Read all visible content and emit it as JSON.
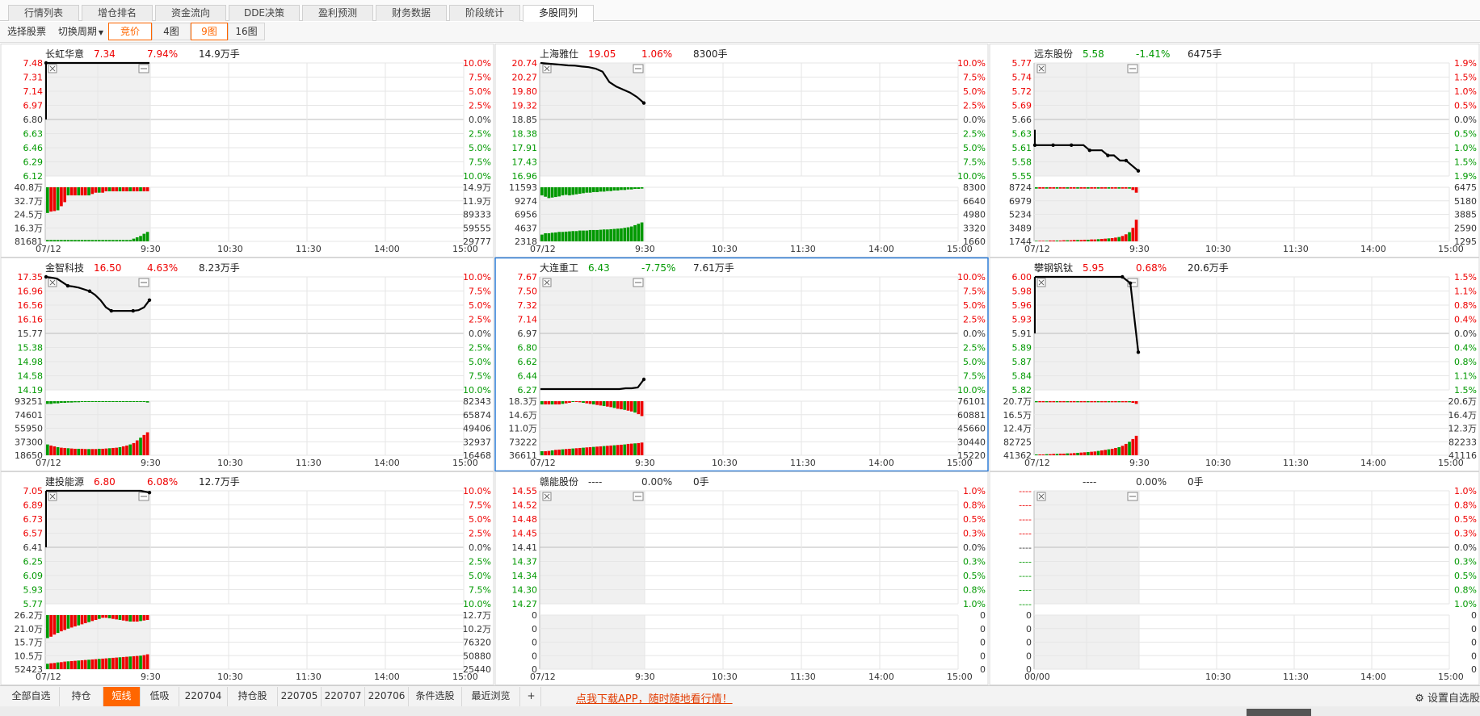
{
  "top_tabs": [
    "行情列表",
    "增仓排名",
    "资金流向",
    "DDE决策",
    "盈利预测",
    "财务数据",
    "阶段统计",
    "多股同列"
  ],
  "toolbar": {
    "select_stock": "选择股票",
    "switch_period": "切换周期",
    "auction": "竞价",
    "view_4": "4图",
    "view_9": "9图",
    "view_16": "16图"
  },
  "bottom_tabs": [
    "全部自选",
    "持仓",
    "短线",
    "低吸",
    "220704",
    "持仓股",
    "220705",
    "220707",
    "220706",
    "条件选股",
    "最近浏览"
  ],
  "bottom_active": "短线",
  "add_symbol": "+",
  "promo": "点我下载APP，随时随地看行情！",
  "settings_label": "设置自选股",
  "colors": {
    "up": "#ee0000",
    "down": "#009900",
    "flat": "#333333",
    "accent": "#ff6600",
    "selected_border": "#2b7bd6"
  },
  "panels": [
    {
      "name": "长虹华意",
      "price": "7.34",
      "chg": "7.94%",
      "vol": "14.9万手",
      "trend": "up",
      "left_ticks": [
        "7.48",
        "7.31",
        "7.14",
        "6.97",
        "6.80",
        "6.63",
        "6.46",
        "6.29",
        "6.12"
      ],
      "right_ticks": [
        "10.0%",
        "7.5%",
        "5.0%",
        "2.5%",
        "0.0%",
        "2.5%",
        "5.0%",
        "7.5%",
        "10.0%"
      ],
      "vol_left": [
        "40.8万",
        "32.7万",
        "24.5万",
        "16.3万",
        "81681"
      ],
      "vol_right": [
        "14.9万",
        "11.9万",
        "89333",
        "59555",
        "29777"
      ],
      "times": [
        "07/12",
        "9:30",
        "10:30",
        "11:30",
        "14:00",
        "15:00"
      ],
      "price_series": [
        7.48,
        7.48,
        7.48,
        7.48,
        7.48,
        7.48,
        7.48,
        7.48,
        7.48,
        7.48,
        7.48
      ],
      "dots": [
        0
      ],
      "opening_bar": [
        6.8,
        7.48
      ],
      "vol_top": [
        0.95,
        0.9,
        0.88,
        0.85,
        0.7,
        0.55,
        0.3,
        0.3,
        0.3,
        0.3,
        0.3,
        0.3,
        0.3,
        0.25,
        0.2,
        0.2,
        0.2,
        0.15,
        0.15,
        0.15,
        0.15,
        0.15,
        0.15,
        0.15,
        0.15,
        0.15,
        0.15,
        0.15,
        0.15,
        0.15
      ],
      "vol_bottom": [
        0.05,
        0.05,
        0.05,
        0.05,
        0.05,
        0.05,
        0.05,
        0.05,
        0.05,
        0.05,
        0.05,
        0.05,
        0.05,
        0.05,
        0.05,
        0.05,
        0.05,
        0.05,
        0.05,
        0.05,
        0.05,
        0.05,
        0.05,
        0.05,
        0.05,
        0.1,
        0.15,
        0.2,
        0.28,
        0.35
      ],
      "top_color": "mixed",
      "bottom_color": "green",
      "selected": false
    },
    {
      "name": "上海雅仕",
      "price": "19.05",
      "chg": "1.06%",
      "vol": "8300手",
      "trend": "up",
      "left_ticks": [
        "20.74",
        "20.27",
        "19.80",
        "19.32",
        "18.85",
        "18.38",
        "17.91",
        "17.43",
        "16.96"
      ],
      "right_ticks": [
        "10.0%",
        "7.5%",
        "5.0%",
        "2.5%",
        "0.0%",
        "2.5%",
        "5.0%",
        "7.5%",
        "10.0%"
      ],
      "vol_left": [
        "11593",
        "9274",
        "6956",
        "4637",
        "2318"
      ],
      "vol_right": [
        "8300",
        "6640",
        "4980",
        "3320",
        "1660"
      ],
      "times": [
        "07/12",
        "9:30",
        "10:30",
        "11:30",
        "14:00",
        "15:00"
      ],
      "price_series": [
        20.74,
        20.72,
        20.7,
        20.68,
        20.66,
        20.65,
        20.62,
        20.6,
        20.55,
        20.45,
        20.1,
        19.95,
        19.85,
        19.75,
        19.6,
        19.4
      ],
      "dots": [
        15
      ],
      "opening_bar": null,
      "vol_top": [
        0.3,
        0.35,
        0.4,
        0.38,
        0.36,
        0.34,
        0.3,
        0.28,
        0.3,
        0.28,
        0.26,
        0.24,
        0.22,
        0.2,
        0.2,
        0.18,
        0.18,
        0.16,
        0.16,
        0.14,
        0.14,
        0.12,
        0.12,
        0.1,
        0.1,
        0.08,
        0.08,
        0.06,
        0.06,
        0.05
      ],
      "vol_bottom": [
        0.25,
        0.3,
        0.3,
        0.32,
        0.33,
        0.35,
        0.35,
        0.36,
        0.37,
        0.38,
        0.38,
        0.4,
        0.4,
        0.4,
        0.42,
        0.42,
        0.42,
        0.43,
        0.44,
        0.44,
        0.45,
        0.46,
        0.47,
        0.48,
        0.5,
        0.52,
        0.55,
        0.6,
        0.65,
        0.7
      ],
      "top_color": "green",
      "bottom_color": "green",
      "selected": false
    },
    {
      "name": "远东股份",
      "price": "5.58",
      "chg": "-1.41%",
      "vol": "6475手",
      "trend": "down",
      "left_ticks": [
        "5.77",
        "5.74",
        "5.72",
        "5.69",
        "5.66",
        "5.63",
        "5.61",
        "5.58",
        "5.55"
      ],
      "right_ticks": [
        "1.9%",
        "1.5%",
        "1.0%",
        "0.5%",
        "0.0%",
        "0.5%",
        "1.0%",
        "1.5%",
        "1.9%"
      ],
      "vol_left": [
        "8724",
        "6979",
        "5234",
        "3489",
        "1744"
      ],
      "vol_right": [
        "6475",
        "5180",
        "3885",
        "2590",
        "1295"
      ],
      "times": [
        "07/12",
        "9:30",
        "10:30",
        "11:30",
        "14:00",
        "15:00"
      ],
      "price_series": [
        5.61,
        5.61,
        5.61,
        5.61,
        5.61,
        5.61,
        5.61,
        5.61,
        5.61,
        5.6,
        5.6,
        5.6,
        5.59,
        5.59,
        5.58,
        5.58,
        5.57,
        5.56
      ],
      "dots": [
        0,
        3,
        6,
        9,
        12,
        15,
        17
      ],
      "opening_bar": [
        5.61,
        5.64
      ],
      "vol_top": [
        0.05,
        0.05,
        0.05,
        0.05,
        0.05,
        0.05,
        0.05,
        0.05,
        0.05,
        0.05,
        0.05,
        0.05,
        0.05,
        0.05,
        0.05,
        0.05,
        0.05,
        0.05,
        0.05,
        0.05,
        0.05,
        0.05,
        0.05,
        0.05,
        0.05,
        0.05,
        0.05,
        0.05,
        0.1,
        0.2
      ],
      "vol_bottom": [
        0.02,
        0.02,
        0.02,
        0.02,
        0.03,
        0.03,
        0.03,
        0.03,
        0.04,
        0.04,
        0.04,
        0.05,
        0.05,
        0.05,
        0.06,
        0.06,
        0.07,
        0.07,
        0.08,
        0.09,
        0.1,
        0.11,
        0.12,
        0.14,
        0.16,
        0.2,
        0.26,
        0.34,
        0.5,
        0.8
      ],
      "top_color": "mixed",
      "bottom_color": "mixed",
      "selected": false
    },
    {
      "name": "金智科技",
      "price": "16.50",
      "chg": "4.63%",
      "vol": "8.23万手",
      "trend": "up",
      "left_ticks": [
        "17.35",
        "16.96",
        "16.56",
        "16.16",
        "15.77",
        "15.38",
        "14.98",
        "14.58",
        "14.19"
      ],
      "right_ticks": [
        "10.0%",
        "7.5%",
        "5.0%",
        "2.5%",
        "0.0%",
        "2.5%",
        "5.0%",
        "7.5%",
        "10.0%"
      ],
      "vol_left": [
        "93251",
        "74601",
        "55950",
        "37300",
        "18650"
      ],
      "vol_right": [
        "82343",
        "65874",
        "49406",
        "32937",
        "16468"
      ],
      "times": [
        "07/12",
        "9:30",
        "10:30",
        "11:30",
        "14:00",
        "15:00"
      ],
      "price_series": [
        17.35,
        17.33,
        17.3,
        17.2,
        17.1,
        17.08,
        17.05,
        17.0,
        16.95,
        16.85,
        16.7,
        16.5,
        16.4,
        16.4,
        16.4,
        16.4,
        16.4,
        16.42,
        16.5,
        16.7
      ],
      "dots": [
        0,
        4,
        8,
        12,
        16,
        19
      ],
      "opening_bar": null,
      "vol_top": [
        0.1,
        0.1,
        0.08,
        0.08,
        0.06,
        0.06,
        0.05,
        0.05,
        0.04,
        0.04,
        0.03,
        0.03,
        0.03,
        0.03,
        0.03,
        0.03,
        0.03,
        0.03,
        0.03,
        0.03,
        0.03,
        0.03,
        0.03,
        0.03,
        0.03,
        0.03,
        0.03,
        0.03,
        0.03,
        0.05
      ],
      "vol_bottom": [
        0.4,
        0.36,
        0.33,
        0.3,
        0.28,
        0.27,
        0.26,
        0.25,
        0.24,
        0.24,
        0.24,
        0.23,
        0.23,
        0.23,
        0.23,
        0.24,
        0.24,
        0.25,
        0.26,
        0.27,
        0.28,
        0.3,
        0.33,
        0.36,
        0.4,
        0.45,
        0.55,
        0.65,
        0.75,
        0.85
      ],
      "top_color": "green",
      "bottom_color": "mixed",
      "selected": false
    },
    {
      "name": "大连重工",
      "price": "6.43",
      "chg": "-7.75%",
      "vol": "7.61万手",
      "trend": "down",
      "left_ticks": [
        "7.67",
        "7.50",
        "7.32",
        "7.14",
        "6.97",
        "6.80",
        "6.62",
        "6.44",
        "6.27"
      ],
      "right_ticks": [
        "10.0%",
        "7.5%",
        "5.0%",
        "2.5%",
        "0.0%",
        "2.5%",
        "5.0%",
        "7.5%",
        "10.0%"
      ],
      "vol_left": [
        "18.3万",
        "14.6万",
        "11.0万",
        "73222",
        "36611"
      ],
      "vol_right": [
        "76101",
        "60881",
        "45660",
        "30440",
        "15220"
      ],
      "times": [
        "07/12",
        "9:30",
        "10:30",
        "11:30",
        "14:00",
        "15:00"
      ],
      "price_series": [
        6.28,
        6.28,
        6.28,
        6.28,
        6.28,
        6.28,
        6.28,
        6.28,
        6.28,
        6.28,
        6.28,
        6.28,
        6.28,
        6.28,
        6.29,
        6.29,
        6.3,
        6.4
      ],
      "dots": [
        17
      ],
      "opening_bar": null,
      "vol_top": [
        0.12,
        0.12,
        0.12,
        0.12,
        0.12,
        0.12,
        0.1,
        0.08,
        0.06,
        0.03,
        0.03,
        0.04,
        0.06,
        0.08,
        0.1,
        0.12,
        0.14,
        0.16,
        0.18,
        0.2,
        0.22,
        0.25,
        0.28,
        0.3,
        0.32,
        0.35,
        0.38,
        0.42,
        0.48,
        0.55
      ],
      "vol_bottom": [
        0.15,
        0.15,
        0.16,
        0.18,
        0.2,
        0.21,
        0.22,
        0.23,
        0.24,
        0.25,
        0.26,
        0.27,
        0.28,
        0.29,
        0.3,
        0.31,
        0.32,
        0.33,
        0.34,
        0.35,
        0.36,
        0.37,
        0.38,
        0.39,
        0.4,
        0.42,
        0.43,
        0.44,
        0.45,
        0.47
      ],
      "top_color": "mixed",
      "bottom_color": "mixed",
      "selected": true
    },
    {
      "name": "攀钢钒钛",
      "price": "5.95",
      "chg": "0.68%",
      "vol": "20.6万手",
      "trend": "up",
      "left_ticks": [
        "6.00",
        "5.98",
        "5.96",
        "5.93",
        "5.91",
        "5.89",
        "5.87",
        "5.84",
        "5.82"
      ],
      "right_ticks": [
        "1.5%",
        "1.1%",
        "0.8%",
        "0.4%",
        "0.0%",
        "0.4%",
        "0.8%",
        "1.1%",
        "1.5%"
      ],
      "vol_left": [
        "20.7万",
        "16.5万",
        "12.4万",
        "82725",
        "41362"
      ],
      "vol_right": [
        "20.6万",
        "16.4万",
        "12.3万",
        "82233",
        "41116"
      ],
      "times": [
        "07/12",
        "9:30",
        "10:30",
        "11:30",
        "14:00",
        "15:00"
      ],
      "price_series": [
        6.0,
        6.0,
        6.0,
        6.0,
        6.0,
        6.0,
        6.0,
        6.0,
        6.0,
        6.0,
        6.0,
        6.0,
        5.99,
        5.88
      ],
      "dots": [
        11,
        12,
        13
      ],
      "opening_bar": [
        5.91,
        6.0
      ],
      "vol_top": [
        0.04,
        0.04,
        0.04,
        0.04,
        0.04,
        0.04,
        0.04,
        0.04,
        0.04,
        0.04,
        0.04,
        0.04,
        0.04,
        0.04,
        0.04,
        0.04,
        0.04,
        0.04,
        0.04,
        0.04,
        0.04,
        0.04,
        0.04,
        0.04,
        0.04,
        0.04,
        0.04,
        0.04,
        0.06,
        0.1
      ],
      "vol_bottom": [
        0.03,
        0.03,
        0.03,
        0.04,
        0.04,
        0.05,
        0.05,
        0.06,
        0.06,
        0.07,
        0.07,
        0.08,
        0.09,
        0.1,
        0.11,
        0.12,
        0.13,
        0.14,
        0.16,
        0.18,
        0.2,
        0.22,
        0.24,
        0.27,
        0.3,
        0.35,
        0.42,
        0.5,
        0.6,
        0.72
      ],
      "top_color": "mixed",
      "bottom_color": "mixed",
      "selected": false
    },
    {
      "name": "建投能源",
      "price": "6.80",
      "chg": "6.08%",
      "vol": "12.7万手",
      "trend": "up",
      "left_ticks": [
        "7.05",
        "6.89",
        "6.73",
        "6.57",
        "6.41",
        "6.25",
        "6.09",
        "5.93",
        "5.77"
      ],
      "right_ticks": [
        "10.0%",
        "7.5%",
        "5.0%",
        "2.5%",
        "0.0%",
        "2.5%",
        "5.0%",
        "7.5%",
        "10.0%"
      ],
      "vol_left": [
        "26.2万",
        "21.0万",
        "15.7万",
        "10.5万",
        "52423"
      ],
      "vol_right": [
        "12.7万",
        "10.2万",
        "76320",
        "50880",
        "25440"
      ],
      "times": [
        "07/12",
        "9:30",
        "10:30",
        "11:30",
        "14:00",
        "15:00"
      ],
      "price_series": [
        7.05,
        7.05,
        7.05,
        7.05,
        7.05,
        7.05,
        7.05,
        7.05,
        7.05,
        7.05,
        7.05,
        7.05,
        7.03
      ],
      "dots": [
        12
      ],
      "opening_bar": [
        6.41,
        7.05
      ],
      "vol_top": [
        0.85,
        0.8,
        0.72,
        0.66,
        0.6,
        0.55,
        0.5,
        0.46,
        0.42,
        0.38,
        0.34,
        0.3,
        0.26,
        0.22,
        0.18,
        0.14,
        0.1,
        0.1,
        0.12,
        0.14,
        0.16,
        0.18,
        0.2,
        0.22,
        0.24,
        0.24,
        0.24,
        0.22,
        0.2,
        0.18
      ],
      "vol_bottom": [
        0.2,
        0.22,
        0.23,
        0.25,
        0.26,
        0.28,
        0.29,
        0.3,
        0.31,
        0.32,
        0.33,
        0.34,
        0.35,
        0.36,
        0.37,
        0.38,
        0.39,
        0.4,
        0.41,
        0.42,
        0.43,
        0.44,
        0.45,
        0.46,
        0.47,
        0.48,
        0.49,
        0.5,
        0.52,
        0.55
      ],
      "top_color": "mixed",
      "bottom_color": "mixed",
      "selected": false
    },
    {
      "name": "赣能股份",
      "price": "----",
      "chg": "0.00%",
      "vol": "0手",
      "trend": "flat",
      "left_ticks": [
        "14.55",
        "14.52",
        "14.48",
        "14.45",
        "14.41",
        "14.37",
        "14.34",
        "14.30",
        "14.27"
      ],
      "right_ticks": [
        "1.0%",
        "0.8%",
        "0.5%",
        "0.3%",
        "0.0%",
        "0.3%",
        "0.5%",
        "0.8%",
        "1.0%"
      ],
      "vol_left": [
        "0",
        "0",
        "0",
        "0",
        "0"
      ],
      "vol_right": [
        "0",
        "0",
        "0",
        "0",
        "0"
      ],
      "times": [
        "07/12",
        "9:30",
        "10:30",
        "11:30",
        "14:00",
        "15:00"
      ],
      "price_series": [],
      "dots": [],
      "opening_bar": null,
      "vol_top": [],
      "vol_bottom": [],
      "top_color": "none",
      "bottom_color": "none",
      "selected": false
    },
    {
      "name": "",
      "price": "----",
      "chg": "0.00%",
      "vol": "0手",
      "trend": "flat",
      "left_ticks": [
        "----",
        "----",
        "----",
        "----",
        "----",
        "----",
        "----",
        "----",
        "----"
      ],
      "right_ticks": [
        "1.0%",
        "0.8%",
        "0.5%",
        "0.3%",
        "0.0%",
        "0.3%",
        "0.5%",
        "0.8%",
        "1.0%"
      ],
      "vol_left": [
        "0",
        "0",
        "0",
        "0",
        "0"
      ],
      "vol_right": [
        "0",
        "0",
        "0",
        "0",
        "0"
      ],
      "times": [
        "00/00",
        "10:30",
        "11:30",
        "14:00",
        "15:00"
      ],
      "price_series": [],
      "dots": [],
      "opening_bar": null,
      "vol_top": [],
      "vol_bottom": [],
      "top_color": "none",
      "bottom_color": "none",
      "selected": false
    }
  ]
}
